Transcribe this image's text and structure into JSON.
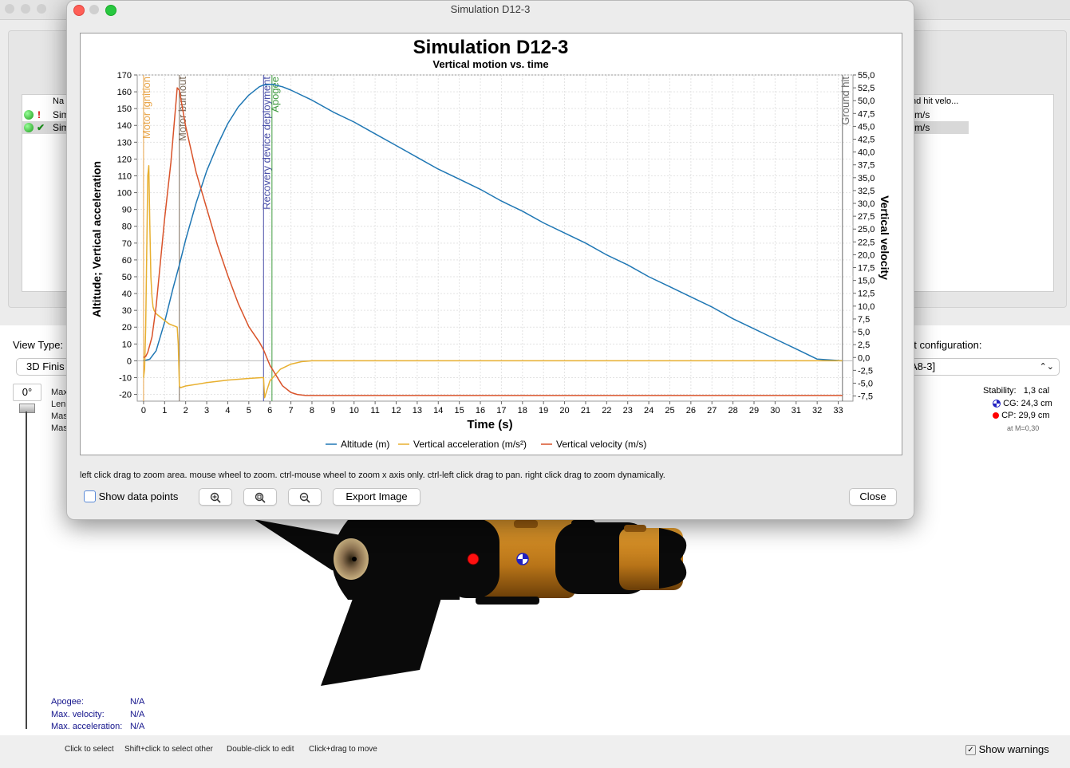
{
  "background": {
    "table": {
      "col_name": "Na",
      "col_ground_hit": "nd hit velo...",
      "rows": [
        {
          "mark": "!",
          "name": "Sim",
          "ground_hit": "m/s"
        },
        {
          "mark": "✔",
          "name": "Sim",
          "ground_hit": "m/s"
        }
      ]
    },
    "view_type_label": "View Type:",
    "view_type_value": "3D Finis",
    "config_label": "nt configuration:",
    "config_value": "A8-3]",
    "angle_value": "0°",
    "side_labels": [
      "Max",
      "Len",
      "Mas",
      "Mas"
    ],
    "stability": {
      "label": "Stability:",
      "value": "1,3 cal",
      "cg": "CG: 24,3 cm",
      "cp": "CP: 29,9 cm",
      "mach": "at M=0,30"
    },
    "flight_info": [
      {
        "label": "Apogee:",
        "value": "N/A"
      },
      {
        "label": "Max. velocity:",
        "value": "N/A"
      },
      {
        "label": "Max. acceleration:",
        "value": "N/A"
      }
    ],
    "hints": [
      "Click to select",
      "Shift+click to select other",
      "Double-click to edit",
      "Click+drag to move"
    ],
    "show_warnings": "Show warnings",
    "colors": {
      "rocket_body": "#0a0a0a",
      "rocket_tube": "#c8841c"
    }
  },
  "dialog": {
    "title": "Simulation D12-3",
    "footnote": "left click drag to zoom area. mouse wheel to zoom. ctrl-mouse wheel to zoom x axis only. ctrl-left click drag to pan.  right click drag to zoom dynamically.",
    "show_data_points": "Show data points",
    "export_label": "Export Image",
    "close_label": "Close",
    "zoom_in_icon": "zoom-in-icon",
    "zoom_reset_icon": "zoom-reset-icon",
    "zoom_out_icon": "zoom-out-icon"
  },
  "chart_data": {
    "type": "line",
    "title": "Simulation D12-3",
    "subtitle": "Vertical motion vs. time",
    "xlabel": "Time (s)",
    "ylabel_left": "Altitude; Vertical acceleration",
    "ylabel_right": "Vertical velocity",
    "xlim": [
      -0.3,
      33.7
    ],
    "ylim_left": [
      -24,
      170
    ],
    "ylim_right": [
      -8.5,
      55
    ],
    "x_ticks": [
      0,
      1,
      2,
      3,
      4,
      5,
      6,
      7,
      8,
      9,
      10,
      11,
      12,
      13,
      14,
      15,
      16,
      17,
      18,
      19,
      20,
      21,
      22,
      23,
      24,
      25,
      26,
      27,
      28,
      29,
      30,
      31,
      32,
      33
    ],
    "y_ticks_left": [
      -20,
      -10,
      0,
      10,
      20,
      30,
      40,
      50,
      60,
      70,
      80,
      90,
      100,
      110,
      120,
      130,
      140,
      150,
      160,
      170
    ],
    "y_ticks_right": [
      "-7,5",
      "-5,0",
      "-2,5",
      "0,0",
      "2,5",
      "5,0",
      "7,5",
      "10,0",
      "12,5",
      "15,0",
      "17,5",
      "20,0",
      "22,5",
      "25,0",
      "27,5",
      "30,0",
      "32,5",
      "35,0",
      "37,5",
      "40,0",
      "42,5",
      "45,0",
      "47,5",
      "50,0",
      "52,5",
      "55,0"
    ],
    "grid": true,
    "legend_position": "bottom",
    "events": [
      {
        "label": "Motor ignition",
        "x": 0.0,
        "color": "#e8a54a"
      },
      {
        "label": "Motor burnout",
        "x": 1.7,
        "color": "#7a6a5a"
      },
      {
        "label": "Recovery device deployment",
        "x": 5.7,
        "color": "#4a50a8"
      },
      {
        "label": "Apogee",
        "x": 6.1,
        "color": "#3f9a3f"
      },
      {
        "label": "Ground hit",
        "x": 33.2,
        "color": "#6a6a6a"
      }
    ],
    "series": [
      {
        "name": "Altitude (m)",
        "color": "#1f77b4",
        "axis": "left",
        "x": [
          0,
          0.3,
          0.6,
          1.0,
          1.4,
          1.7,
          2.0,
          2.5,
          3.0,
          3.5,
          4.0,
          4.5,
          5.0,
          5.5,
          5.7,
          6.1,
          6.6,
          7.0,
          8,
          9,
          10,
          11,
          12,
          13,
          14,
          15,
          16,
          17,
          18,
          19,
          20,
          21,
          22,
          23,
          24,
          25,
          26,
          27,
          28,
          29,
          30,
          31,
          32,
          33.2
        ],
        "y": [
          0,
          1,
          6,
          23,
          43,
          57,
          72,
          94,
          113,
          128,
          141,
          151,
          158,
          163,
          164,
          164.5,
          163,
          161,
          155,
          148,
          142,
          135,
          128,
          121,
          114,
          108,
          102,
          95,
          89,
          82,
          76,
          70,
          63,
          57,
          50,
          44,
          38,
          32,
          25,
          19,
          13,
          7,
          1,
          0
        ]
      },
      {
        "name": "Vertical acceleration (m/s²)",
        "color": "#e8b030",
        "axis": "left",
        "x": [
          0,
          0.05,
          0.1,
          0.2,
          0.25,
          0.3,
          0.35,
          0.4,
          0.45,
          0.5,
          0.6,
          0.8,
          1.0,
          1.2,
          1.4,
          1.6,
          1.65,
          1.7,
          1.75,
          2.0,
          3.0,
          4.0,
          5.0,
          5.6,
          5.7,
          5.75,
          6.0,
          6.5,
          7.0,
          7.5,
          8.0,
          10,
          15,
          20,
          25,
          30,
          33.2
        ],
        "y": [
          -10,
          -5,
          20,
          110,
          116,
          80,
          50,
          38,
          32,
          30,
          28,
          26,
          24,
          22,
          21,
          20,
          10,
          -15,
          -16,
          -15,
          -13,
          -11.5,
          -10.5,
          -10,
          -10,
          -22,
          -12,
          -5,
          -2,
          -0.5,
          0,
          0,
          0,
          0,
          0,
          0,
          0
        ]
      },
      {
        "name": "Vertical velocity (m/s)",
        "color": "#d9532a",
        "axis": "right",
        "x": [
          0,
          0.1,
          0.2,
          0.4,
          0.6,
          1.0,
          1.3,
          1.6,
          1.7,
          2.0,
          2.5,
          3.0,
          3.5,
          4.0,
          4.5,
          5.0,
          5.5,
          5.7,
          6.0,
          6.3,
          6.6,
          7.0,
          7.3,
          7.7,
          8,
          10,
          15,
          20,
          25,
          30,
          33.2
        ],
        "y": [
          0,
          0.2,
          1,
          4,
          10,
          27,
          38,
          52.5,
          52,
          45,
          36,
          29,
          22,
          16,
          10.5,
          6,
          3,
          1.5,
          -1.5,
          -3.5,
          -5.5,
          -6.8,
          -7.2,
          -7.4,
          -7.4,
          -7.4,
          -7.4,
          -7.4,
          -7.4,
          -7.4,
          -7.4
        ]
      }
    ]
  }
}
